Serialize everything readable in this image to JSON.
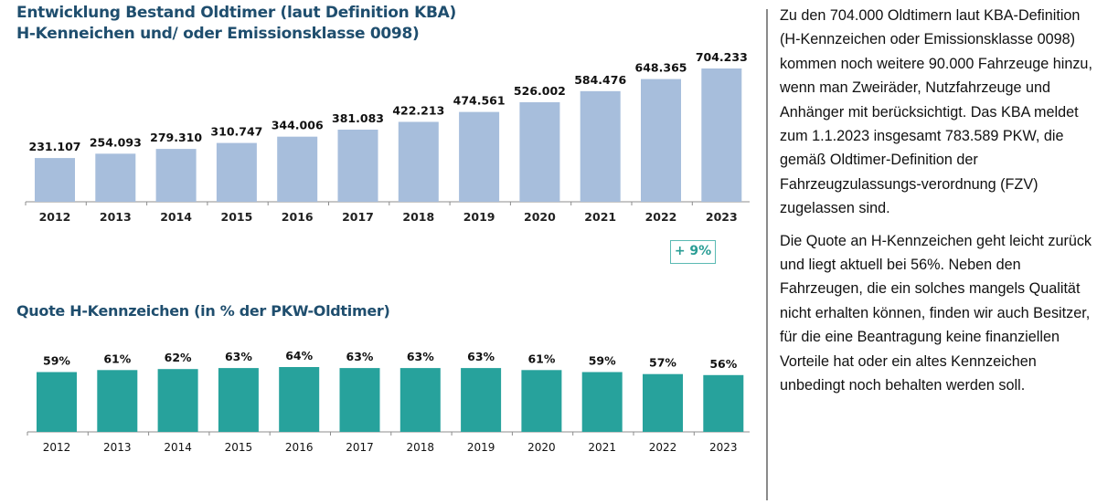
{
  "chart_data": [
    {
      "type": "bar",
      "title": "Entwicklung Bestand Oldtimer (laut Definition KBA)\nH-Kenneichen und/ oder Emissionsklasse 0098)",
      "title_lines": [
        "Entwicklung Bestand Oldtimer (laut Definition KBA)",
        "H-Kenneichen und/ oder Emissionsklasse 0098)"
      ],
      "xlabel": "",
      "ylabel": "",
      "categories": [
        "2012",
        "2013",
        "2014",
        "2015",
        "2016",
        "2017",
        "2018",
        "2019",
        "2020",
        "2021",
        "2022",
        "2023"
      ],
      "values": [
        231107,
        254093,
        279310,
        310747,
        344006,
        381083,
        422213,
        474561,
        526002,
        584476,
        648365,
        704233
      ],
      "data_labels": [
        "231.107",
        "254.093",
        "279.310",
        "310.747",
        "344.006",
        "381.083",
        "422.213",
        "474.561",
        "526.002",
        "584.476",
        "648.365",
        "704.233"
      ],
      "ylim": [
        0,
        704233
      ],
      "grid": false,
      "color": "#a7bedc",
      "annotation": "+ 9%"
    },
    {
      "type": "bar",
      "title": "Quote H-Kennzeichen (in % der PKW-Oldtimer)",
      "xlabel": "",
      "ylabel": "",
      "categories": [
        "2012",
        "2013",
        "2014",
        "2015",
        "2016",
        "2017",
        "2018",
        "2019",
        "2020",
        "2021",
        "2022",
        "2023"
      ],
      "values": [
        59,
        61,
        62,
        63,
        64,
        63,
        63,
        63,
        61,
        59,
        57,
        56
      ],
      "data_labels": [
        "59%",
        "61%",
        "62%",
        "63%",
        "64%",
        "63%",
        "63%",
        "63%",
        "61%",
        "59%",
        "57%",
        "56%"
      ],
      "ylim": [
        0,
        64
      ],
      "grid": false,
      "color": "#27a29c"
    }
  ],
  "sidebar": {
    "paragraphs": [
      "Zu den 704.000 Oldtimern laut KBA-Definition (H-Kennzeichen oder Emissionsklasse 0098) kommen noch weitere 90.000 Fahrzeuge hinzu, wenn man Zweiräder, Nutzfahrzeuge und Anhänger mit berücksichtigt. Das KBA meldet zum 1.1.2023 insgesamt 783.589 PKW,  die gemäß Oldtimer-Definition der Fahrzeugzulassungs-verordnung (FZV) zugelassen sind.",
      "Die Quote an H-Kennzeichen geht leicht zurück und liegt aktuell bei 56%. Neben den Fahrzeugen, die ein solches mangels Qualität nicht erhalten können, finden wir auch Besitzer, für die eine Beantragung keine finanziellen Vorteile hat oder ein altes Kennzeichen unbedingt noch behalten werden soll."
    ]
  }
}
